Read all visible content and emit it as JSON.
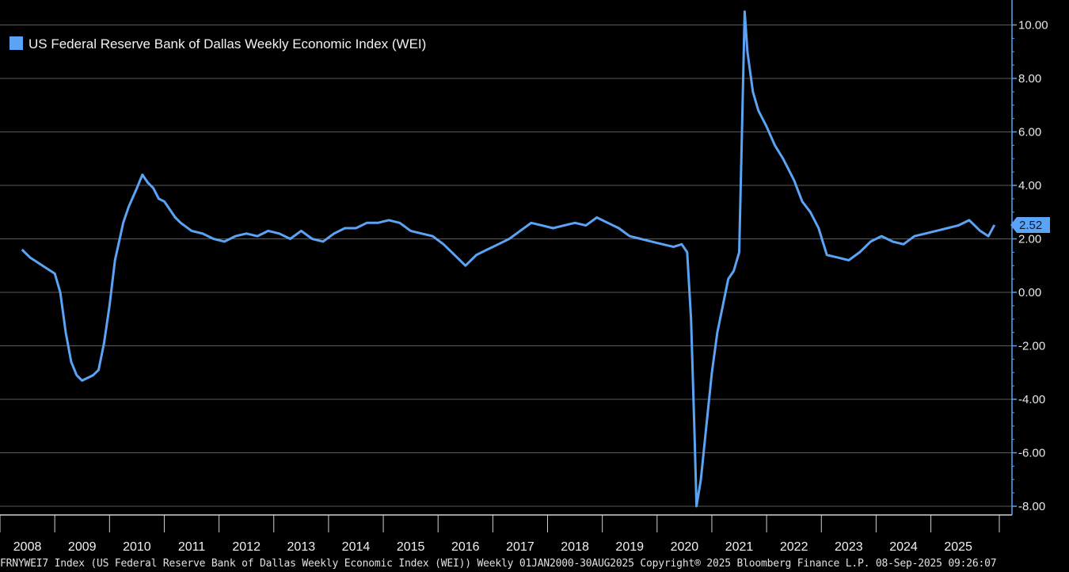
{
  "colors": {
    "background": "#000000",
    "series": "#5ba3f5",
    "grid": "#5a5a5a",
    "axis": "#5ba3f5"
  },
  "chart_data": {
    "type": "line",
    "title": "",
    "legend": {
      "placement": "top-left",
      "entries": [
        "US Federal Reserve Bank of Dallas Weekly Economic Index (WEI)"
      ]
    },
    "series": [
      {
        "name": "US Federal Reserve Bank of Dallas Weekly Economic Index (WEI)",
        "x": [
          2007.9,
          2008.05,
          2008.2,
          2008.35,
          2008.5,
          2008.6,
          2008.7,
          2008.8,
          2008.9,
          2009.0,
          2009.1,
          2009.2,
          2009.3,
          2009.4,
          2009.5,
          2009.6,
          2009.75,
          2009.85,
          2010.0,
          2010.1,
          2010.2,
          2010.3,
          2010.4,
          2010.5,
          2010.6,
          2010.7,
          2010.8,
          2011.0,
          2011.2,
          2011.4,
          2011.6,
          2011.8,
          2012.0,
          2012.2,
          2012.4,
          2012.6,
          2012.8,
          2013.0,
          2013.2,
          2013.4,
          2013.6,
          2013.8,
          2014.0,
          2014.2,
          2014.4,
          2014.6,
          2014.8,
          2015.0,
          2015.2,
          2015.4,
          2015.6,
          2015.8,
          2016.0,
          2016.2,
          2016.4,
          2016.6,
          2016.8,
          2017.0,
          2017.2,
          2017.4,
          2017.6,
          2017.8,
          2018.0,
          2018.2,
          2018.4,
          2018.6,
          2018.8,
          2019.0,
          2019.2,
          2019.4,
          2019.6,
          2019.8,
          2019.95,
          2020.05,
          2020.12,
          2020.18,
          2020.22,
          2020.3,
          2020.4,
          2020.5,
          2020.6,
          2020.7,
          2020.8,
          2020.9,
          2021.0,
          2021.05,
          2021.1,
          2021.15,
          2021.25,
          2021.35,
          2021.5,
          2021.65,
          2021.8,
          2022.0,
          2022.15,
          2022.3,
          2022.45,
          2022.6,
          2022.8,
          2023.0,
          2023.2,
          2023.4,
          2023.6,
          2023.8,
          2024.0,
          2024.2,
          2024.4,
          2024.6,
          2024.8,
          2025.0,
          2025.2,
          2025.4,
          2025.55,
          2025.66
        ],
        "values": [
          1.6,
          1.3,
          1.1,
          0.9,
          0.7,
          0.0,
          -1.5,
          -2.6,
          -3.1,
          -3.3,
          -3.2,
          -3.1,
          -2.9,
          -1.9,
          -0.5,
          1.2,
          2.6,
          3.2,
          3.9,
          4.4,
          4.1,
          3.9,
          3.5,
          3.4,
          3.1,
          2.8,
          2.6,
          2.3,
          2.2,
          2.0,
          1.9,
          2.1,
          2.2,
          2.1,
          2.3,
          2.2,
          2.0,
          2.3,
          2.0,
          1.9,
          2.2,
          2.4,
          2.4,
          2.6,
          2.6,
          2.7,
          2.6,
          2.3,
          2.2,
          2.1,
          1.8,
          1.4,
          1.0,
          1.4,
          1.6,
          1.8,
          2.0,
          2.3,
          2.6,
          2.5,
          2.4,
          2.5,
          2.6,
          2.5,
          2.8,
          2.6,
          2.4,
          2.1,
          2.0,
          1.9,
          1.8,
          1.7,
          1.8,
          1.5,
          -1.0,
          -5.0,
          -8.0,
          -7.0,
          -5.0,
          -3.0,
          -1.5,
          -0.5,
          0.5,
          0.8,
          1.5,
          6.0,
          10.5,
          9.0,
          7.5,
          6.8,
          6.2,
          5.5,
          5.0,
          4.2,
          3.4,
          3.0,
          2.4,
          1.4,
          1.3,
          1.2,
          1.5,
          1.9,
          2.1,
          1.9,
          1.8,
          2.1,
          2.2,
          2.3,
          2.4,
          2.5,
          2.7,
          2.3,
          2.1,
          2.52
        ]
      }
    ],
    "x_ticks": [
      "2008",
      "2009",
      "2010",
      "2011",
      "2012",
      "2013",
      "2014",
      "2015",
      "2016",
      "2017",
      "2018",
      "2019",
      "2020",
      "2021",
      "2022",
      "2023",
      "2024",
      "2025"
    ],
    "y_ticks": [
      "10.00",
      "8.00",
      "6.00",
      "4.00",
      "2.00",
      "0.00",
      "-2.00",
      "-4.00",
      "-6.00",
      "-8.00"
    ],
    "xlim": [
      2007.5,
      2025.75
    ],
    "ylim": [
      -8.2,
      10.7
    ],
    "last_value": {
      "label": "2.52",
      "value": 2.52
    },
    "grid": true,
    "y_axis_side": "right"
  },
  "footer": "FRNYWEI7 Index (US Federal Reserve Bank of Dallas Weekly Economic Index (WEI)) Weekly 01JAN2000-30AUG2025 Copyright® 2025 Bloomberg Finance L.P. 08-Sep-2025 09:26:07"
}
